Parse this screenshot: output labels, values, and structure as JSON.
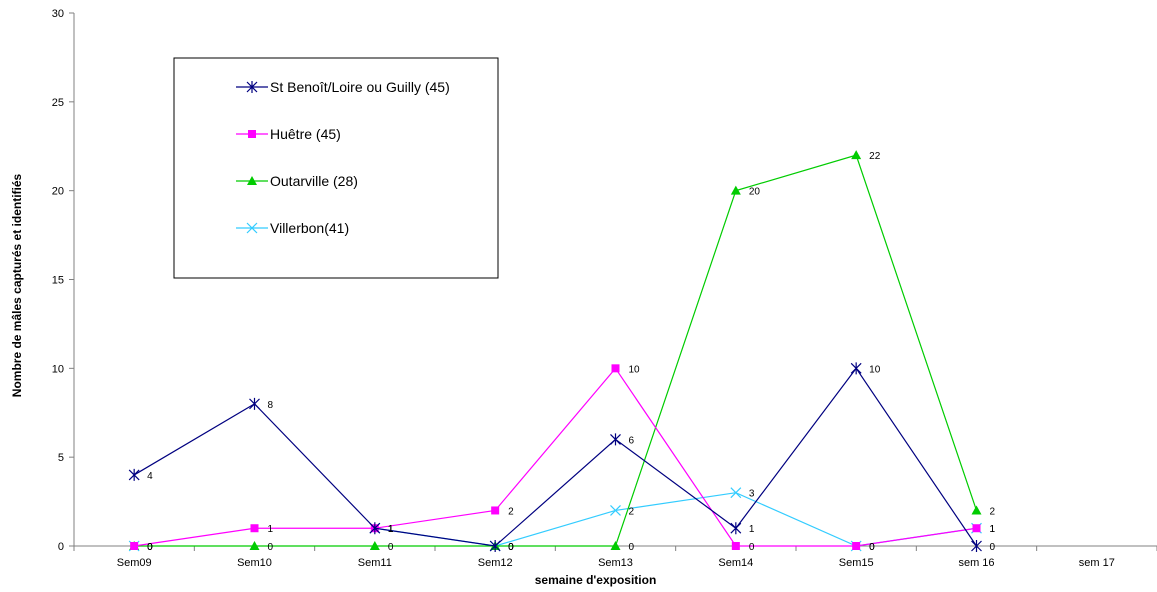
{
  "chart_data": {
    "type": "line",
    "title": "",
    "xlabel": "semaine d'exposition",
    "ylabel": "Nombre de mâles capturés et identifiés",
    "categories": [
      "Sem09",
      "Sem10",
      "Sem11",
      "Sem12",
      "Sem13",
      "Sem14",
      "Sem15",
      "sem 16",
      "sem 17"
    ],
    "ylim": [
      0,
      30
    ],
    "yticks": [
      0,
      5,
      10,
      15,
      20,
      25,
      30
    ],
    "legend_position": "top-left",
    "series": [
      {
        "name": "St Benoît/Loire ou Guilly (45)",
        "color": "#000080",
        "marker": "asterisk",
        "values": [
          4,
          8,
          1,
          0,
          6,
          1,
          10,
          0,
          null
        ]
      },
      {
        "name": "Huêtre (45)",
        "color": "#FF00FF",
        "marker": "square",
        "values": [
          0,
          1,
          1,
          2,
          10,
          0,
          0,
          1,
          null
        ]
      },
      {
        "name": "Outarville (28)",
        "color": "#00CC00",
        "marker": "triangle",
        "values": [
          0,
          0,
          0,
          0,
          0,
          20,
          22,
          2,
          null
        ]
      },
      {
        "name": "Villerbon(41)",
        "color": "#33CCFF",
        "marker": "x",
        "values": [
          0,
          null,
          1,
          0,
          2,
          3,
          0,
          1,
          null
        ]
      }
    ]
  }
}
